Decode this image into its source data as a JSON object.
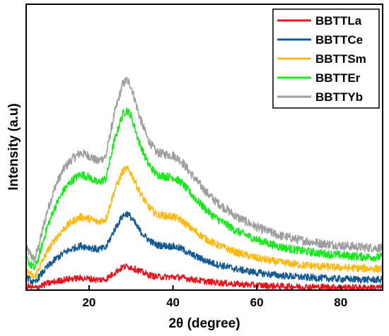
{
  "chart_data": {
    "type": "line",
    "title": "",
    "xlabel": "2θ (degree)",
    "ylabel": "Intensity (a.u)",
    "xlim": [
      5,
      90
    ],
    "ylim": [
      0,
      100
    ],
    "x_ticks": [
      "20",
      "40",
      "60",
      "80"
    ],
    "x_tick_values": [
      20,
      40,
      60,
      80
    ],
    "y_tick_labels_shown": false,
    "grid": false,
    "legend_position": "top-right",
    "x": [
      5,
      6,
      7,
      8,
      10,
      12,
      14,
      16,
      18,
      20,
      22,
      24,
      26,
      28,
      29,
      30,
      32,
      34,
      36,
      38,
      40,
      42,
      44,
      46,
      48,
      50,
      55,
      60,
      65,
      70,
      75,
      80,
      85,
      90
    ],
    "series": [
      {
        "name": "BBTTLa",
        "color": "#e8141b",
        "values": [
          1.6,
          1.0,
          0.7,
          1.2,
          2.3,
          3.0,
          3.6,
          4.0,
          4.2,
          4.0,
          3.6,
          3.8,
          6.0,
          8.0,
          8.3,
          8.0,
          6.7,
          5.4,
          4.7,
          4.6,
          4.6,
          4.4,
          3.9,
          3.4,
          3.0,
          2.7,
          2.1,
          1.7,
          1.4,
          1.2,
          1.1,
          1.0,
          0.9,
          0.9
        ]
      },
      {
        "name": "BBTTCe",
        "color": "#145a92",
        "values": [
          4.5,
          3.5,
          2.3,
          4.5,
          8.0,
          10.8,
          13.0,
          14.5,
          15.5,
          15.0,
          14.2,
          14.8,
          21.0,
          26.0,
          26.8,
          25.5,
          21.0,
          17.8,
          15.8,
          15.5,
          15.3,
          14.5,
          12.8,
          11.4,
          10.2,
          9.2,
          7.4,
          6.1,
          5.2,
          4.6,
          4.2,
          3.9,
          3.7,
          3.6
        ]
      },
      {
        "name": "BBTTSm",
        "color": "#fdb913",
        "values": [
          7.0,
          5.5,
          4.3,
          7.5,
          13.5,
          18.0,
          21.5,
          24.0,
          25.6,
          25.0,
          23.8,
          24.8,
          34.5,
          41.5,
          42.5,
          41.0,
          34.5,
          29.5,
          26.5,
          26.0,
          25.7,
          24.4,
          22.0,
          19.8,
          17.8,
          16.2,
          13.2,
          11.2,
          9.8,
          8.9,
          8.3,
          7.9,
          7.6,
          7.4
        ]
      },
      {
        "name": "BBTTEr",
        "color": "#19e81e",
        "values": [
          11.0,
          9.0,
          7.5,
          11.5,
          22.0,
          29.5,
          35.0,
          38.5,
          40.5,
          39.5,
          37.5,
          39.0,
          52.0,
          61.5,
          63.0,
          61.0,
          51.5,
          44.5,
          40.5,
          39.8,
          39.5,
          37.6,
          34.2,
          31.0,
          28.0,
          25.5,
          20.8,
          17.6,
          15.3,
          13.9,
          12.9,
          12.2,
          11.7,
          11.5
        ]
      },
      {
        "name": "BBTTYb",
        "color": "#9e9e9e",
        "values": [
          14.5,
          12.5,
          10.5,
          15.5,
          27.5,
          36.5,
          42.5,
          46.0,
          48.0,
          47.0,
          45.0,
          46.8,
          61.5,
          72.0,
          73.5,
          71.5,
          60.8,
          52.8,
          48.2,
          47.5,
          47.2,
          45.2,
          41.3,
          37.6,
          34.2,
          31.3,
          25.8,
          22.0,
          19.3,
          17.6,
          16.4,
          15.6,
          15.0,
          14.7
        ]
      }
    ]
  }
}
